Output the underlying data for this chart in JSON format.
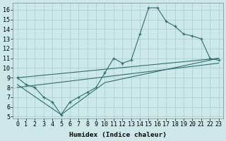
{
  "xlabel": "Humidex (Indice chaleur)",
  "background_color": "#cce8e8",
  "grid_color": "#aacccc",
  "line_color": "#2d7070",
  "xlim": [
    -0.5,
    23.5
  ],
  "ylim": [
    4.8,
    16.7
  ],
  "xticks": [
    0,
    1,
    2,
    3,
    4,
    5,
    6,
    7,
    8,
    9,
    10,
    11,
    12,
    13,
    14,
    15,
    16,
    17,
    18,
    19,
    20,
    21,
    22,
    23
  ],
  "yticks": [
    5,
    6,
    7,
    8,
    9,
    10,
    11,
    12,
    13,
    14,
    15,
    16
  ],
  "main_x": [
    0,
    1,
    2,
    3,
    4,
    5,
    6,
    7,
    8,
    9,
    10,
    11,
    12,
    13,
    14,
    15,
    16,
    17,
    18,
    19,
    20,
    21,
    22,
    23
  ],
  "main_y": [
    9.0,
    8.3,
    8.0,
    7.0,
    6.5,
    5.2,
    6.5,
    7.0,
    7.5,
    8.0,
    9.5,
    11.0,
    10.5,
    10.8,
    13.5,
    16.2,
    16.2,
    14.8,
    14.3,
    13.5,
    13.3,
    13.0,
    11.0,
    10.8
  ],
  "trend1_x": [
    0,
    23
  ],
  "trend1_y": [
    9.0,
    11.0
  ],
  "trend2_x": [
    0,
    5,
    10,
    23
  ],
  "trend2_y": [
    8.3,
    5.2,
    8.5,
    11.0
  ],
  "trend3_x": [
    0,
    23
  ],
  "trend3_y": [
    8.0,
    10.5
  ],
  "tickfont_size": 6.0
}
